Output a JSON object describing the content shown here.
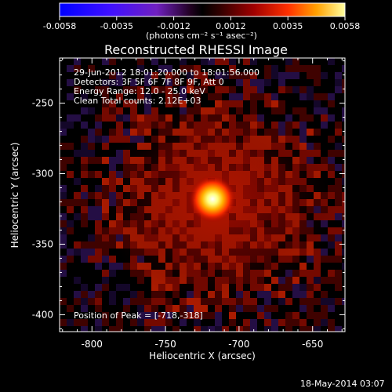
{
  "colorbar": {
    "ticks": [
      "-0.0058",
      "-0.0035",
      "-0.0012",
      "0.0012",
      "0.0035",
      "0.0058"
    ],
    "units": "(photons cm⁻² s⁻¹ asec⁻²)"
  },
  "image": {
    "title": "Reconstructed RHESSI Image",
    "annotations": [
      "29-Jun-2012 18:01:20.000 to 18:01:56.000",
      "Detectors: 3F 5F 6F 7F 8F 9F, Att 0",
      "Energy Range: 12.0 - 25.0 keV",
      "Clean     Total counts: 2.12E+03"
    ],
    "peak_label": "Position of Peak = [-718,-318]"
  },
  "footer": {
    "timestamp": "18-May-2014 03:07"
  },
  "chart_data": {
    "type": "heatmap",
    "title": "Reconstructed RHESSI Image",
    "xlabel": "Heliocentric X (arcsec)",
    "ylabel": "Heliocentric Y (arcsec)",
    "xlim": [
      -822,
      -628
    ],
    "ylim": [
      -412,
      -218
    ],
    "x_ticks": [
      -800,
      -750,
      -700,
      -650
    ],
    "y_ticks": [
      -250,
      -300,
      -350,
      -400
    ],
    "colorbar_range": [
      -0.0058,
      0.0058
    ],
    "peak": {
      "x": -718,
      "y": -318,
      "value": 0.0058
    },
    "colormap": [
      "#0000ff",
      "#8000ff",
      "#000000",
      "#800000",
      "#ff4000",
      "#ffa000",
      "#ffffff"
    ]
  }
}
